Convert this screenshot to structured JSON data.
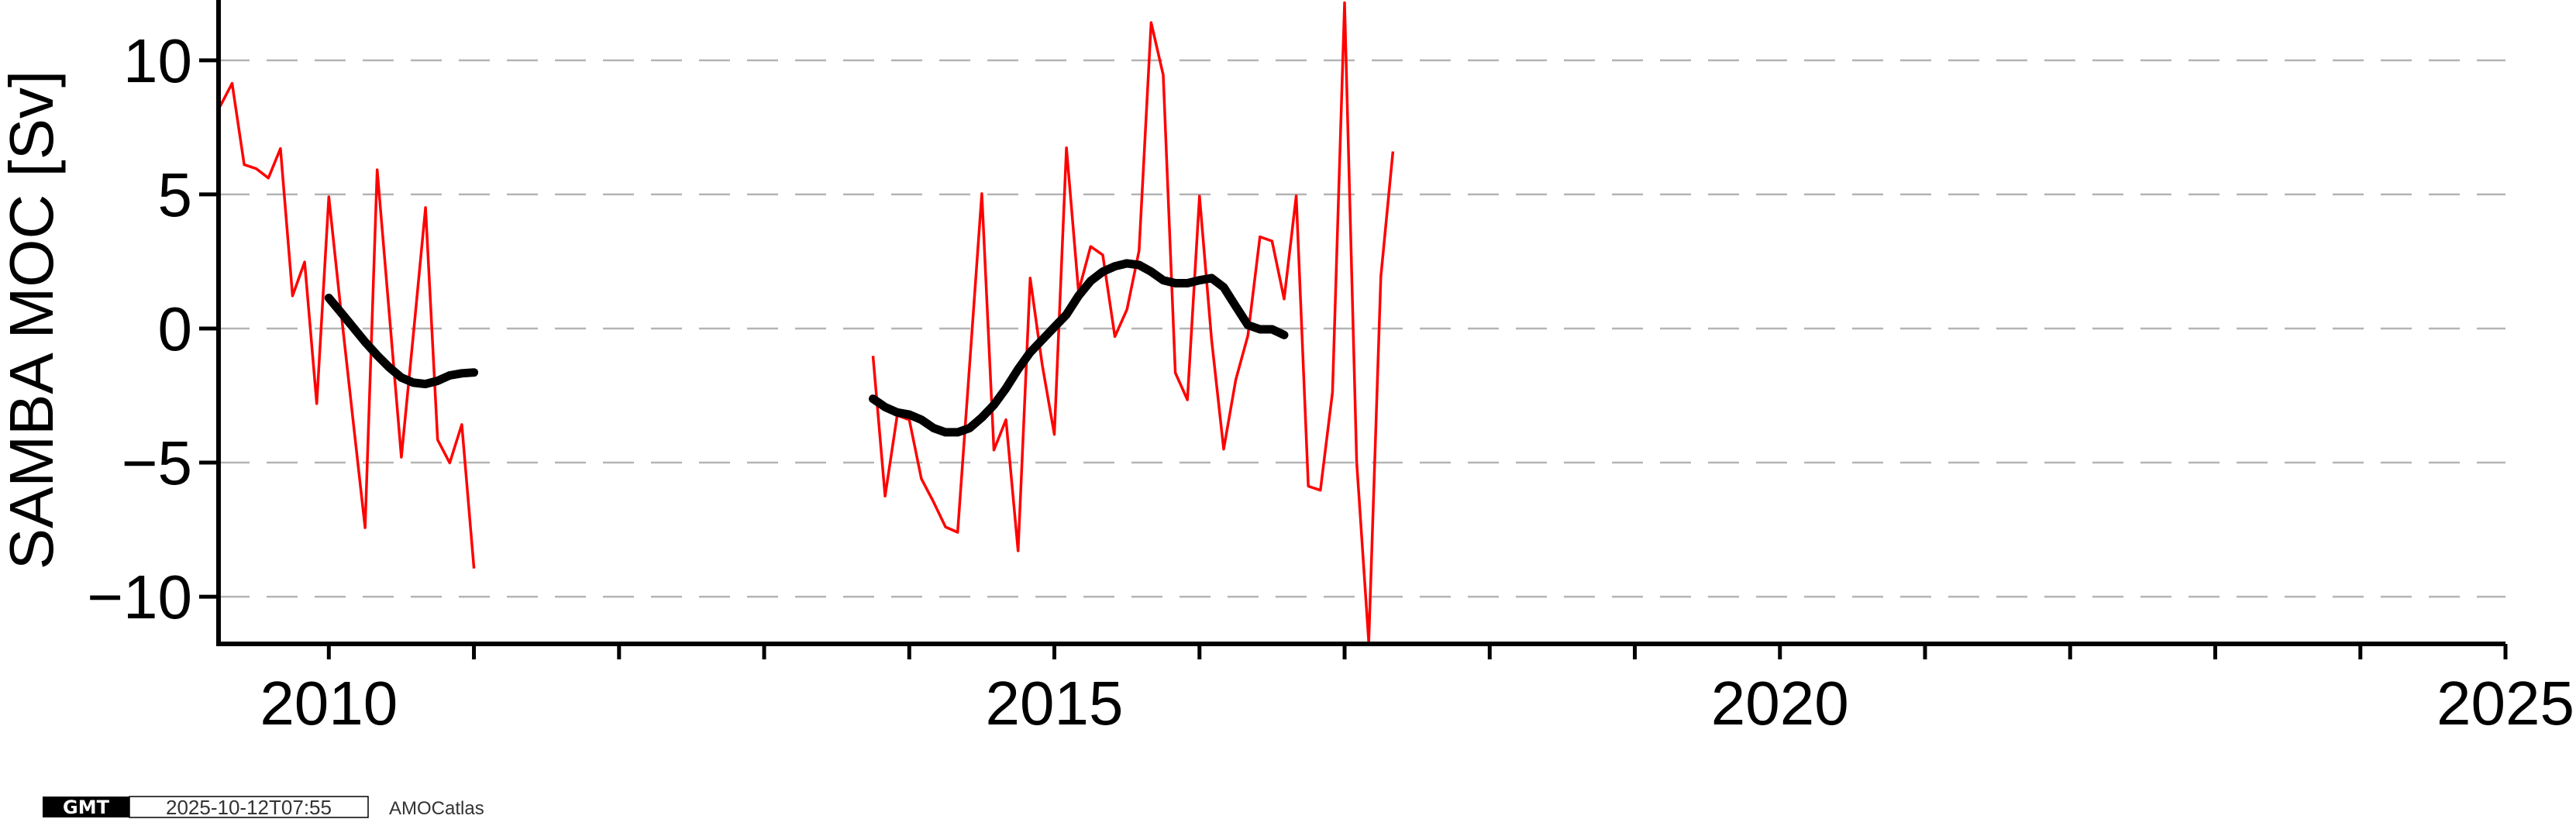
{
  "chart_data": {
    "type": "line",
    "title": "",
    "xlabel": "",
    "ylabel": "SAMBA MOC [Sv]",
    "xlim": [
      2009.24,
      2025
    ],
    "ylim": [
      -11.76,
      12.25
    ],
    "xticks": [
      2010,
      2015,
      2020,
      2025
    ],
    "xtick_labels": [
      "2010",
      "2015",
      "2020",
      "2025"
    ],
    "x_minor_ticks_every": 1,
    "yticks": [
      10,
      5,
      0,
      -5,
      -10
    ],
    "ytick_labels": [
      "10",
      "5",
      "0",
      "−5",
      "−10"
    ],
    "grid": "horizontal dashed",
    "series": [
      {
        "color": "#ff0000",
        "segments": [
          {
            "x_start": 2009.25,
            "x_step_months": 1,
            "values": [
              8.28,
              9.14,
              6.11,
              5.96,
              5.61,
              6.71,
              1.22,
              2.48,
              -2.8,
              4.91,
              0.67,
              -3.4,
              -7.43,
              5.92,
              0.56,
              -4.8,
              -0.19,
              4.51,
              -4.15,
              -5.01,
              -3.58,
              -8.95
            ]
          },
          {
            "x_start": 2013.75,
            "x_step_months": 1,
            "values": [
              -1.02,
              -6.25,
              -3.24,
              -3.4,
              -5.6,
              -6.46,
              -7.4,
              -7.6,
              -1.3,
              5.03,
              -4.53,
              -3.4,
              -8.29,
              1.88,
              -1.36,
              -3.95,
              6.74,
              1.38,
              3.06,
              2.74,
              -0.3,
              0.71,
              2.9,
              11.41,
              9.45,
              -1.65,
              -2.66,
              4.94,
              -0.42,
              -4.5,
              -1.91,
              -0.27,
              3.42,
              3.26,
              1.1,
              4.95,
              -5.88,
              -6.03,
              -2.38,
              12.15,
              -4.97,
              -11.7,
              1.93,
              6.6
            ]
          }
        ]
      },
      {
        "color": "#000000",
        "segments": [
          {
            "x_start": 2010.0,
            "x_step_months": 1,
            "values": [
              1.14,
              0.6,
              0.05,
              -0.5,
              -1.0,
              -1.45,
              -1.83,
              -2.02,
              -2.07,
              -1.95,
              -1.75,
              -1.67,
              -1.64
            ]
          },
          {
            "x_start": 2013.75,
            "x_step_months": 1,
            "values": [
              -2.62,
              -2.93,
              -3.13,
              -3.21,
              -3.4,
              -3.71,
              -3.87,
              -3.87,
              -3.71,
              -3.32,
              -2.85,
              -2.23,
              -1.52,
              -0.89,
              -0.42,
              0.05,
              0.52,
              1.22,
              1.77,
              2.12,
              2.32,
              2.43,
              2.37,
              2.12,
              1.8,
              1.69,
              1.69,
              1.8,
              1.88,
              1.54,
              0.83,
              0.13,
              -0.03,
              -0.03,
              -0.24
            ]
          }
        ]
      }
    ]
  },
  "footer": {
    "logo": "GMT",
    "timestamp": "2025-10-12T07:55",
    "source": "AMOCatlas"
  }
}
